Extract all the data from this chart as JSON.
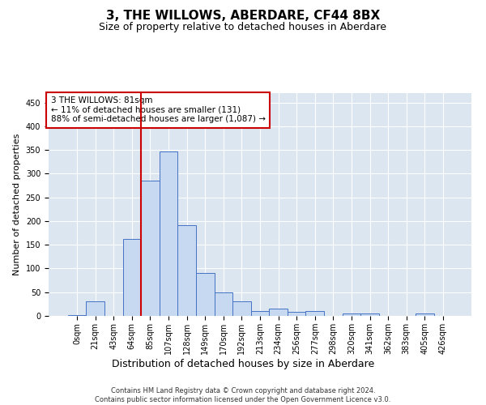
{
  "title": "3, THE WILLOWS, ABERDARE, CF44 8BX",
  "subtitle": "Size of property relative to detached houses in Aberdare",
  "xlabel": "Distribution of detached houses by size in Aberdare",
  "ylabel": "Number of detached properties",
  "footer_line1": "Contains HM Land Registry data © Crown copyright and database right 2024.",
  "footer_line2": "Contains public sector information licensed under the Open Government Licence v3.0.",
  "bar_labels": [
    "0sqm",
    "21sqm",
    "43sqm",
    "64sqm",
    "85sqm",
    "107sqm",
    "128sqm",
    "149sqm",
    "170sqm",
    "192sqm",
    "213sqm",
    "234sqm",
    "256sqm",
    "277sqm",
    "298sqm",
    "320sqm",
    "341sqm",
    "362sqm",
    "383sqm",
    "405sqm",
    "426sqm"
  ],
  "bar_values": [
    2,
    30,
    0,
    163,
    285,
    347,
    192,
    90,
    50,
    30,
    10,
    16,
    8,
    10,
    0,
    5,
    5,
    0,
    0,
    5,
    0
  ],
  "bar_color": "#c6d9f1",
  "bar_edge_color": "#4472c4",
  "annotation_text": "3 THE WILLOWS: 81sqm\n← 11% of detached houses are smaller (131)\n88% of semi-detached houses are larger (1,087) →",
  "annotation_box_color": "#ffffff",
  "annotation_box_edge_color": "#cc0000",
  "vline_x_index": 4,
  "vline_color": "#cc0000",
  "ylim": [
    0,
    470
  ],
  "yticks": [
    0,
    50,
    100,
    150,
    200,
    250,
    300,
    350,
    400,
    450
  ],
  "plot_background": "#dce6f1",
  "grid_color": "#ffffff",
  "title_fontsize": 11,
  "subtitle_fontsize": 9,
  "ylabel_fontsize": 8,
  "xlabel_fontsize": 9,
  "tick_fontsize": 7,
  "annotation_fontsize": 7.5,
  "footer_fontsize": 6
}
